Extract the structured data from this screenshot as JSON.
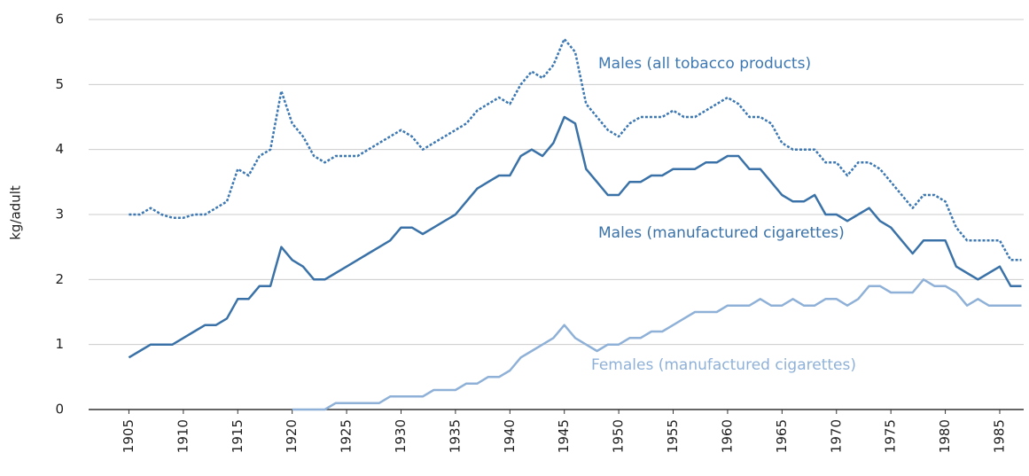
{
  "chart_data": {
    "type": "line",
    "y_label": "kg/adult",
    "x": [
      1905,
      1906,
      1907,
      1908,
      1909,
      1910,
      1911,
      1912,
      1913,
      1914,
      1915,
      1916,
      1917,
      1918,
      1919,
      1920,
      1921,
      1922,
      1923,
      1924,
      1925,
      1926,
      1927,
      1928,
      1929,
      1930,
      1931,
      1932,
      1933,
      1934,
      1935,
      1936,
      1937,
      1938,
      1939,
      1940,
      1941,
      1942,
      1943,
      1944,
      1945,
      1946,
      1947,
      1948,
      1949,
      1950,
      1951,
      1952,
      1953,
      1954,
      1955,
      1956,
      1957,
      1958,
      1959,
      1960,
      1961,
      1962,
      1963,
      1964,
      1965,
      1966,
      1967,
      1968,
      1969,
      1970,
      1971,
      1972,
      1973,
      1974,
      1975,
      1976,
      1977,
      1978,
      1979,
      1980,
      1981,
      1982,
      1983,
      1984,
      1985,
      1986,
      1987
    ],
    "series": [
      {
        "name": "Males (all tobacco products)",
        "color": "#3d78b3",
        "line_style": "dotted",
        "values": [
          3.0,
          3.0,
          3.1,
          3.0,
          2.95,
          2.95,
          3.0,
          3.0,
          3.1,
          3.2,
          3.7,
          3.6,
          3.9,
          4.0,
          4.9,
          4.4,
          4.2,
          3.9,
          3.8,
          3.9,
          3.9,
          3.9,
          4.0,
          4.1,
          4.2,
          4.3,
          4.2,
          4.0,
          4.1,
          4.2,
          4.3,
          4.4,
          4.6,
          4.7,
          4.8,
          4.7,
          5.0,
          5.2,
          5.1,
          5.3,
          5.7,
          5.5,
          4.7,
          4.5,
          4.3,
          4.2,
          4.4,
          4.5,
          4.5,
          4.5,
          4.6,
          4.5,
          4.5,
          4.6,
          4.7,
          4.8,
          4.7,
          4.5,
          4.5,
          4.4,
          4.1,
          4.0,
          4.0,
          4.0,
          3.8,
          3.8,
          3.6,
          3.8,
          3.8,
          3.7,
          3.5,
          3.3,
          3.1,
          3.3,
          3.3,
          3.2,
          2.8,
          2.6,
          2.6,
          2.6,
          2.6,
          2.3,
          2.3
        ]
      },
      {
        "name": "Males (manufactured cigarettes)",
        "color": "#3a72a8",
        "line_style": "solid",
        "values": [
          0.8,
          0.9,
          1.0,
          1.0,
          1.0,
          1.1,
          1.2,
          1.3,
          1.3,
          1.4,
          1.7,
          1.7,
          1.9,
          1.9,
          2.5,
          2.3,
          2.2,
          2.0,
          2.0,
          2.1,
          2.2,
          2.3,
          2.4,
          2.5,
          2.6,
          2.8,
          2.8,
          2.7,
          2.8,
          2.9,
          3.0,
          3.2,
          3.4,
          3.5,
          3.6,
          3.6,
          3.9,
          4.0,
          3.9,
          4.1,
          4.5,
          4.4,
          3.7,
          3.5,
          3.3,
          3.3,
          3.5,
          3.5,
          3.6,
          3.6,
          3.7,
          3.7,
          3.7,
          3.8,
          3.8,
          3.9,
          3.9,
          3.7,
          3.7,
          3.5,
          3.3,
          3.2,
          3.2,
          3.3,
          3.0,
          3.0,
          2.9,
          3.0,
          3.1,
          2.9,
          2.8,
          2.6,
          2.4,
          2.6,
          2.6,
          2.6,
          2.2,
          2.1,
          2.0,
          2.1,
          2.2,
          1.9,
          1.9
        ]
      },
      {
        "name": "Females (manufactured cigarettes)",
        "color": "#8fb1d8",
        "line_style": "solid",
        "values": [
          null,
          null,
          null,
          null,
          null,
          null,
          null,
          null,
          null,
          null,
          null,
          null,
          null,
          null,
          null,
          0,
          0,
          0,
          0,
          0.1,
          0.1,
          0.1,
          0.1,
          0.1,
          0.2,
          0.2,
          0.2,
          0.2,
          0.3,
          0.3,
          0.3,
          0.4,
          0.4,
          0.5,
          0.5,
          0.6,
          0.8,
          0.9,
          1.0,
          1.1,
          1.3,
          1.1,
          1.0,
          0.9,
          1.0,
          1.0,
          1.1,
          1.1,
          1.2,
          1.2,
          1.3,
          1.4,
          1.5,
          1.5,
          1.5,
          1.6,
          1.6,
          1.6,
          1.7,
          1.6,
          1.6,
          1.7,
          1.6,
          1.6,
          1.7,
          1.7,
          1.6,
          1.7,
          1.9,
          1.9,
          1.8,
          1.8,
          1.8,
          2.0,
          1.9,
          1.9,
          1.8,
          1.6,
          1.7,
          1.6,
          1.6,
          1.6,
          1.6
        ]
      }
    ],
    "xlim": [
      1901.3,
      1987.2
    ],
    "xticks": [
      1905,
      1910,
      1915,
      1920,
      1925,
      1930,
      1935,
      1940,
      1945,
      1950,
      1955,
      1960,
      1965,
      1970,
      1975,
      1980,
      1985
    ],
    "ylim": [
      0,
      6
    ],
    "yticks": [
      0,
      1,
      2,
      3,
      4,
      5,
      6
    ],
    "grid": true
  }
}
